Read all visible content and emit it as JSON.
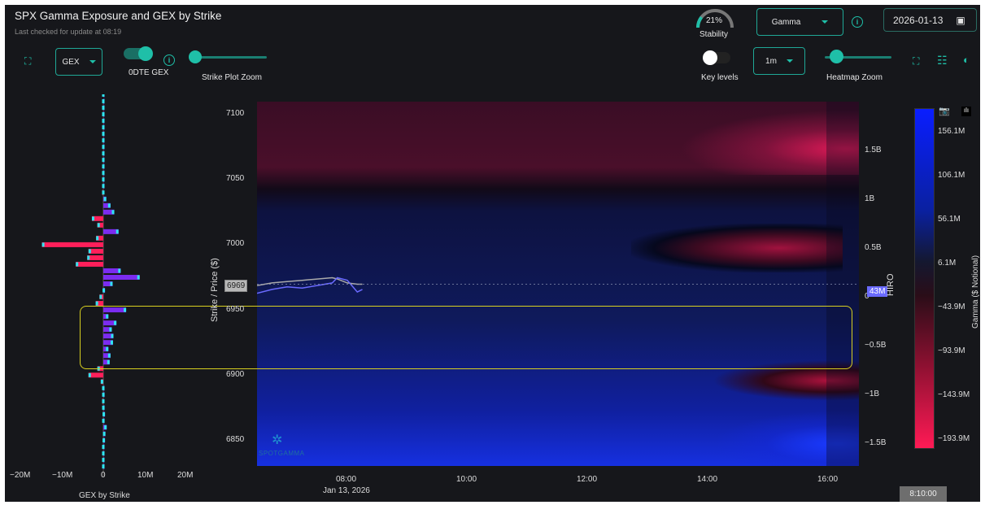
{
  "header": {
    "title": "SPX Gamma Exposure and GEX by Strike",
    "last_checked": "Last checked for update at 08:19"
  },
  "controls": {
    "gex_select": "GEX",
    "toggle_0dte_label": "0DTE GEX",
    "toggle_0dte_on": true,
    "strike_zoom_label": "Strike Plot Zoom",
    "strike_zoom_value": 0,
    "stability_value": "21%",
    "stability_label": "Stability",
    "stability_fraction": 0.21,
    "metric_select": "Gamma",
    "date": "2026-01-13",
    "key_levels_label": "Key levels",
    "key_levels_on": false,
    "interval_select": "1m",
    "heatmap_zoom_label": "Heatmap Zoom",
    "heatmap_zoom_value": 0.1
  },
  "gex_chart": {
    "xlabel": "GEX by Strike",
    "xticks": [
      "−20M",
      "−10M",
      "0",
      "10M",
      "20M"
    ],
    "colors": {
      "positive": "#7b2cf0",
      "negative": "#ff1f5a",
      "marker": "#2ee6f0"
    },
    "strikes": [
      7115,
      7110,
      7105,
      7100,
      7095,
      7090,
      7085,
      7080,
      7075,
      7070,
      7065,
      7060,
      7055,
      7050,
      7045,
      7040,
      7035,
      7030,
      7025,
      7020,
      7015,
      7010,
      7005,
      7000,
      6995,
      6990,
      6985,
      6980,
      6975,
      6970,
      6965,
      6960,
      6955,
      6950,
      6945,
      6940,
      6935,
      6930,
      6925,
      6920,
      6915,
      6910,
      6905,
      6900,
      6895,
      6890,
      6885,
      6880,
      6875,
      6870,
      6865,
      6860,
      6855,
      6850,
      6845,
      6840,
      6835,
      6830
    ],
    "values_m": [
      0.1,
      0.1,
      0.1,
      0.1,
      0.1,
      0.1,
      0.1,
      0.1,
      0.1,
      0.1,
      0.1,
      0.1,
      0.1,
      0.2,
      0.1,
      -0.2,
      0.7,
      1.7,
      2.6,
      -2.7,
      -1.4,
      3.6,
      -1.7,
      -14.5,
      -3.5,
      -3.8,
      -6.5,
      4.1,
      8.6,
      2.2,
      0.4,
      -0.9,
      -1.8,
      5.4,
      1.2,
      3.1,
      2.0,
      2.4,
      2.3,
      1.2,
      1.7,
      1.5,
      -1.4,
      -3.5,
      -0.6,
      0.2,
      0.3,
      -0.2,
      0.3,
      0.4,
      0.3,
      0.8,
      0.5,
      0.4,
      0.2,
      0.1,
      0.1,
      0.1
    ]
  },
  "heatmap": {
    "ylabel": "Strike / Price ($)",
    "yticks": [
      "7100",
      "7050",
      "7000",
      "6950",
      "6900",
      "6850"
    ],
    "xticks": [
      "08:00",
      "10:00",
      "12:00",
      "14:00",
      "16:00"
    ],
    "date_label": "Jan 13, 2026",
    "price_label": "6969",
    "watermark": "SPOTGAMMA",
    "hiro_label": "HIRO",
    "hiro_value": "43M",
    "hiro_ticks": [
      "1.5B",
      "1B",
      "0.5B",
      "0",
      "−0.5B",
      "−1B",
      "−1.5B"
    ],
    "colorbar_label": "Gamma ($ Notional)",
    "colorbar_ticks": [
      "156.1M",
      "106.1M",
      "56.1M",
      "6.1M",
      "−43.9M",
      "−93.9M",
      "−143.9M",
      "−193.9M"
    ],
    "time_cursor": "8:10:00",
    "price_series": {
      "times": [
        "06:30",
        "06:45",
        "07:00",
        "07:15",
        "07:30",
        "07:45",
        "07:50",
        "08:00",
        "08:10",
        "08:15"
      ],
      "gamma_price": [
        6969,
        6971,
        6972,
        6973,
        6974,
        6975,
        6974,
        6971,
        6970,
        6970
      ],
      "hiro_price": [
        6963,
        6966,
        6968,
        6967,
        6969,
        6971,
        6975,
        6973,
        6964,
        6966
      ]
    },
    "highlight_range": [
      6908,
      6956
    ]
  }
}
